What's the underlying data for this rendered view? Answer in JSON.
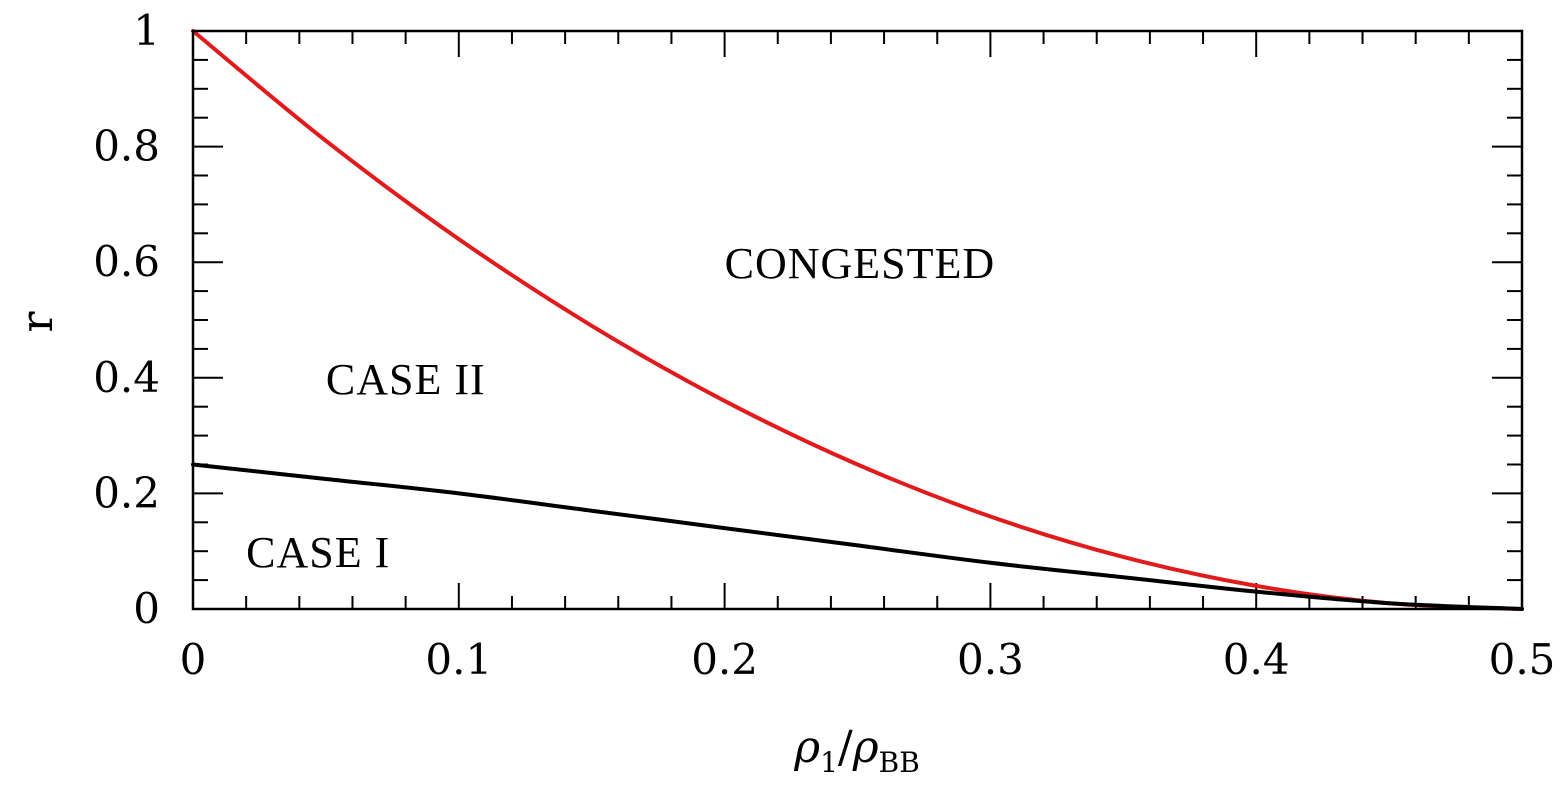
{
  "chart_data": {
    "type": "line",
    "title": "",
    "xlabel": {
      "main": "ρ",
      "sub1": "1",
      "slash": "/",
      "main2": "ρ",
      "sub2": "BB"
    },
    "ylabel": "r",
    "xlim": [
      0,
      0.5
    ],
    "ylim": [
      0,
      1
    ],
    "xticks": [
      "0",
      "0.1",
      "0.2",
      "0.3",
      "0.4",
      "0.5"
    ],
    "yticks": [
      "0",
      "0.2",
      "0.4",
      "0.6",
      "0.8",
      "1"
    ],
    "grid": false,
    "legend": "none",
    "series": [
      {
        "color": "#e31a1c",
        "x": [
          0,
          0.05,
          0.1,
          0.15,
          0.2,
          0.25,
          0.3,
          0.35,
          0.4,
          0.45,
          0.5
        ],
        "y": [
          1.0,
          0.81,
          0.64,
          0.49,
          0.36,
          0.25,
          0.16,
          0.09,
          0.04,
          0.01,
          0.0
        ]
      },
      {
        "color": "#000000",
        "x": [
          0,
          0.05,
          0.1,
          0.15,
          0.2,
          0.25,
          0.3,
          0.35,
          0.4,
          0.45,
          0.5
        ],
        "y": [
          0.25,
          0.225,
          0.2,
          0.17,
          0.14,
          0.11,
          0.08,
          0.055,
          0.03,
          0.01,
          0.0
        ]
      }
    ],
    "annotations": [
      {
        "text": "CONGESTED",
        "x": 0.2,
        "y": 0.6
      },
      {
        "text": "CASE II",
        "x": 0.05,
        "y": 0.4
      },
      {
        "text": "CASE I",
        "x": 0.02,
        "y": 0.1
      }
    ]
  }
}
